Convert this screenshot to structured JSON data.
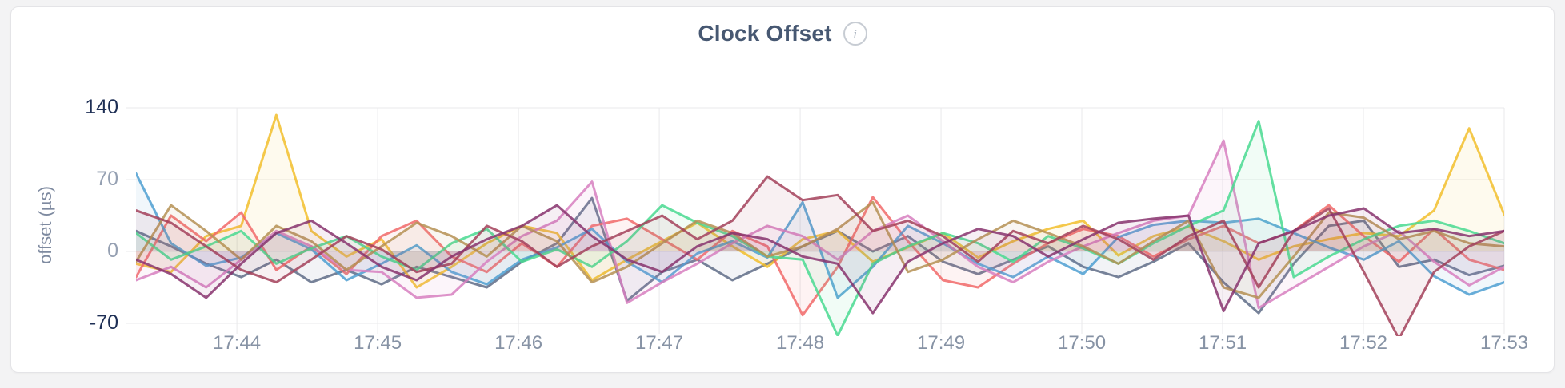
{
  "header": {
    "title": "Clock Offset",
    "info_icon": "i"
  },
  "colors": {
    "title": "#475872",
    "axis_extreme": "#1E2F55",
    "axis_tick": "#95A0B2",
    "x_tick": "#8793A5",
    "grid": "#E9E9EB",
    "card_background": "#FFFFFF",
    "page_background": "#F3F3F4"
  },
  "chart_data": {
    "type": "line",
    "title": "Clock Offset",
    "xlabel": "",
    "ylabel": "offset (µs)",
    "ylim": [
      -70,
      140
    ],
    "yticks": [
      140,
      70,
      0,
      -70
    ],
    "ytick_emphasis": [
      true,
      false,
      false,
      true
    ],
    "grid": true,
    "legend": "none",
    "xticks": [
      "17:44",
      "17:45",
      "17:46",
      "17:47",
      "17:48",
      "17:49",
      "17:50",
      "17:51",
      "17:52",
      "17:53"
    ],
    "x_first_tick_offset_seconds": 43,
    "x_tick_interval_seconds": 60,
    "x_total_seconds": 583,
    "sample_interval_seconds": 15,
    "series": [
      {
        "id": "s1",
        "color": "#5F6C87",
        "values": [
          20,
          5,
          -12,
          -25,
          -8,
          -30,
          -18,
          -32,
          -15,
          -25,
          -35,
          -10,
          8,
          52,
          -48,
          -20,
          -8,
          -28,
          -12,
          5,
          20,
          0,
          15,
          -10,
          -22,
          -8,
          5,
          -15,
          -25,
          -10,
          8,
          -30,
          -60,
          -12,
          25,
          30,
          -15,
          -8,
          -23,
          -14
        ]
      },
      {
        "id": "s2",
        "color": "#F2BE2C",
        "values": [
          -12,
          -20,
          15,
          25,
          133,
          20,
          -5,
          12,
          -35,
          -15,
          8,
          25,
          18,
          -28,
          -8,
          10,
          28,
          5,
          -15,
          12,
          20,
          -10,
          4,
          18,
          -6,
          10,
          22,
          30,
          -4,
          15,
          24,
          10,
          -8,
          5,
          12,
          18,
          15,
          40,
          120,
          36
        ]
      },
      {
        "id": "s3",
        "color": "#F16969",
        "values": [
          -25,
          35,
          10,
          38,
          -18,
          5,
          -22,
          15,
          30,
          -5,
          -20,
          8,
          -15,
          25,
          32,
          12,
          -8,
          20,
          5,
          -62,
          -15,
          53,
          10,
          -28,
          -35,
          -12,
          8,
          22,
          15,
          -5,
          12,
          25,
          8,
          20,
          45,
          15,
          -10,
          22,
          -8,
          -18
        ]
      },
      {
        "id": "s4",
        "color": "#4E9FD1",
        "values": [
          76,
          8,
          -14,
          -6,
          18,
          2,
          -28,
          -12,
          6,
          -20,
          -32,
          -8,
          4,
          22,
          -10,
          -30,
          -2,
          10,
          -6,
          48,
          -45,
          -15,
          25,
          8,
          -12,
          -25,
          -5,
          -22,
          14,
          26,
          30,
          28,
          32,
          18,
          4,
          -8,
          10,
          -24,
          -42,
          -30
        ]
      },
      {
        "id": "s5",
        "color": "#D77FBF",
        "values": [
          -28,
          -15,
          -35,
          -8,
          20,
          5,
          -18,
          -20,
          -45,
          -42,
          -10,
          15,
          30,
          68,
          -50,
          -30,
          -12,
          8,
          25,
          15,
          -8,
          20,
          35,
          10,
          -15,
          -30,
          -10,
          5,
          18,
          30,
          35,
          108,
          -55,
          -35,
          -15,
          5,
          20,
          -10,
          -33,
          -15
        ]
      },
      {
        "id": "s6",
        "color": "#49D990",
        "values": [
          18,
          -8,
          5,
          20,
          -12,
          3,
          15,
          -5,
          -18,
          8,
          22,
          -10,
          2,
          -15,
          10,
          45,
          28,
          15,
          -5,
          -8,
          -82,
          -12,
          5,
          18,
          8,
          -10,
          15,
          3,
          -12,
          8,
          25,
          40,
          127,
          -25,
          -5,
          12,
          25,
          30,
          20,
          8
        ]
      },
      {
        "id": "s7",
        "color": "#B59153",
        "values": [
          -10,
          45,
          20,
          -8,
          25,
          10,
          -18,
          5,
          28,
          15,
          -5,
          25,
          10,
          -30,
          -15,
          8,
          30,
          18,
          -5,
          5,
          22,
          48,
          -20,
          -8,
          12,
          30,
          18,
          5,
          -12,
          10,
          30,
          -35,
          -45,
          -5,
          38,
          33,
          12,
          20,
          8,
          5
        ]
      },
      {
        "id": "s8",
        "color": "#A3415B",
        "values": [
          40,
          28,
          5,
          -18,
          -30,
          -8,
          15,
          2,
          -20,
          -12,
          25,
          10,
          -15,
          5,
          20,
          35,
          12,
          30,
          73,
          50,
          55,
          20,
          30,
          15,
          -10,
          20,
          8,
          25,
          12,
          -8,
          15,
          30,
          -35,
          20,
          42,
          -20,
          -85,
          -20,
          5,
          20
        ]
      },
      {
        "id": "s9",
        "color": "#87326D",
        "values": [
          -8,
          -22,
          -45,
          -12,
          18,
          30,
          8,
          -15,
          -28,
          -5,
          12,
          25,
          45,
          15,
          -8,
          -20,
          5,
          18,
          12,
          -5,
          -12,
          -60,
          -10,
          8,
          22,
          15,
          -5,
          12,
          28,
          32,
          35,
          -58,
          8,
          20,
          35,
          42,
          18,
          22,
          15,
          20
        ]
      }
    ]
  }
}
